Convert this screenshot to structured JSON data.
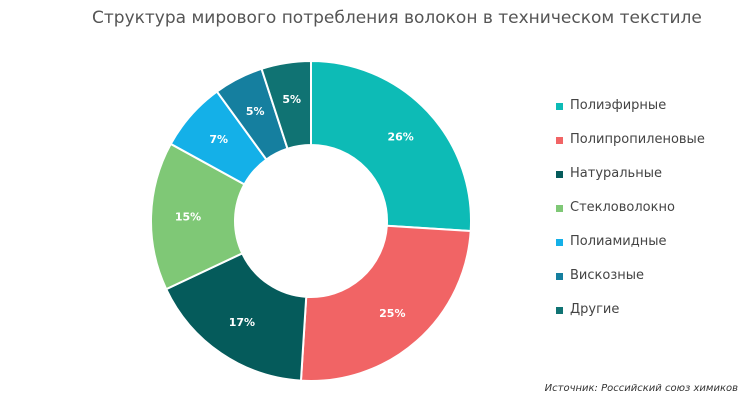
{
  "chart_data": {
    "type": "pie",
    "variant": "donut",
    "title": "Структура мирового потребления волокон в техническом текстиле",
    "categories": [
      "Полиэфирные",
      "Полипропиленовые",
      "Натуральные",
      "Стекловолокно",
      "Полиамидные",
      "Вискозные",
      "Другие"
    ],
    "values": [
      26,
      25,
      17,
      15,
      7,
      5,
      5
    ],
    "data_labels": [
      "26%",
      "25%",
      "17%",
      "15%",
      "7%",
      "5%",
      "5%"
    ],
    "colors": [
      "#0dbbb6",
      "#f16465",
      "#055b5b",
      "#7fc876",
      "#14b0e8",
      "#157f9f",
      "#107373"
    ],
    "legend_position": "right",
    "source": "Источник: Российский союз химиков"
  }
}
